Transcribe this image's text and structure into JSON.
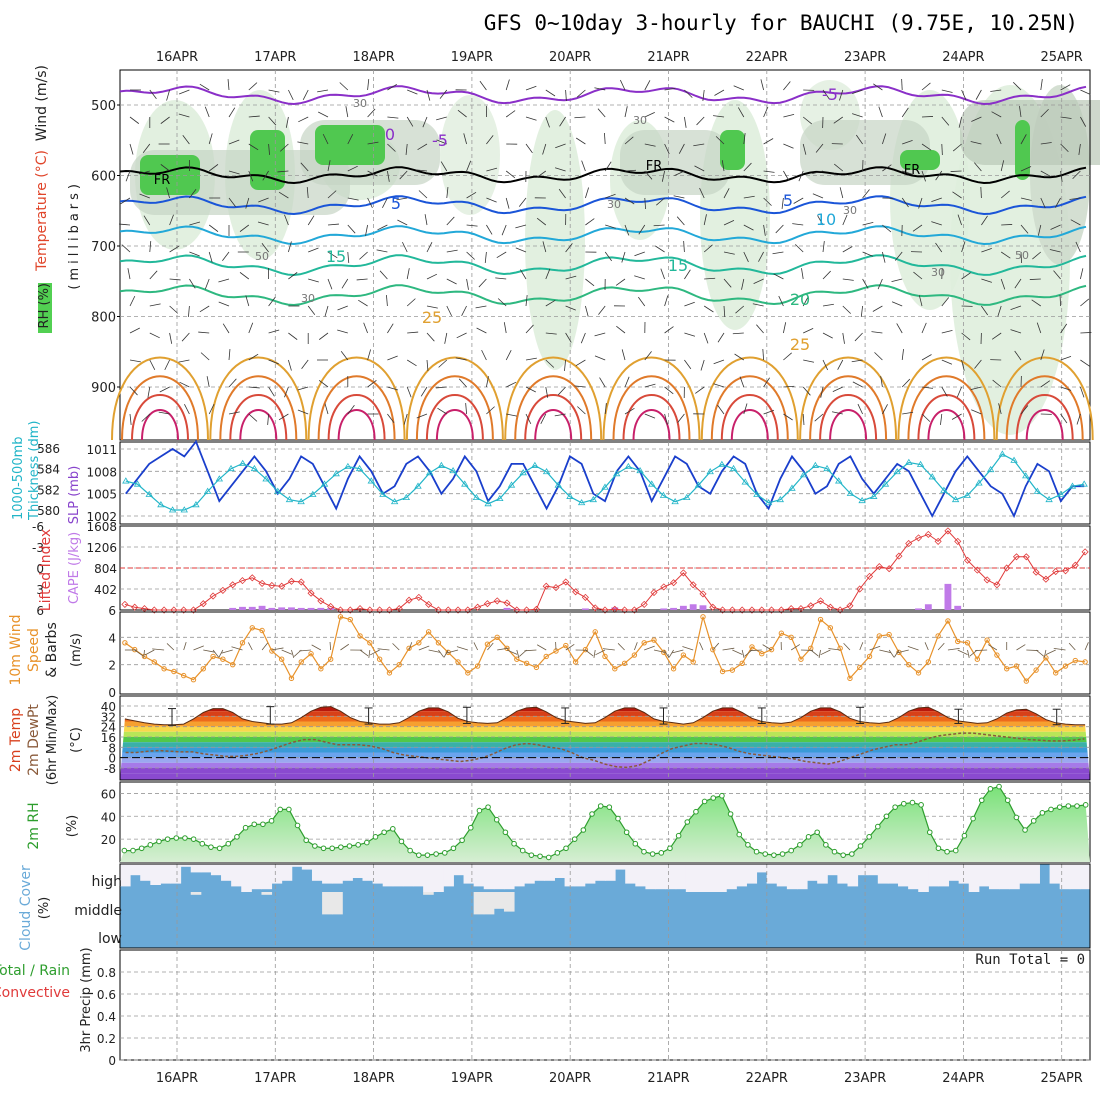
{
  "title": "GFS 0~10day 3-hourly for BAUCHI (9.75E, 10.25N)",
  "x_labels": [
    "16APR",
    "17APR",
    "18APR",
    "19APR",
    "20APR",
    "21APR",
    "22APR",
    "23APR",
    "24APR",
    "25APR"
  ],
  "colors": {
    "grid": "#999999",
    "slp": "#1a3fcc",
    "thickness": "#22b5c8",
    "lifted": "#e03a3a",
    "cape": "#c07ae8",
    "wind": "#e8922a",
    "temp_fill": "#d8401e",
    "dew": "#8a5a3a",
    "rh": "#2e9e2e",
    "cloud": "#6aaad8",
    "cloud_clear": "#f3f1f8",
    "rh_fill": "#4fc04f"
  },
  "panel_labels": {
    "upper": {
      "wind": "Wind (m/s)",
      "temp": "Temperature (°C)",
      "rh": "RH (%)",
      "mb": "(millibars)"
    },
    "slp": {
      "thick1": "1000-500mb",
      "thick2": "Thickness (dm)",
      "slp": "SLP (mb)"
    },
    "cape": {
      "li": "Lifted Index",
      "cape": "CAPE (J/kg)"
    },
    "wind10": {
      "a": "10m Wind",
      "b": "Speed",
      "c": "& Barbs",
      "unit": "(m/s)"
    },
    "temp2": {
      "a": "2m Temp",
      "b": "2m DewPt",
      "c": "(6hr Min/Max)",
      "unit": "(°C)"
    },
    "rh2": {
      "a": "2m RH",
      "unit": "(%)"
    },
    "cloud": {
      "a": "Cloud Cover",
      "unit": "(%)",
      "high": "high",
      "middle": "middle",
      "low": "low"
    },
    "precip": {
      "a": "Total / Rain",
      "b": "Convective",
      "c": "3hr Precip (mm)",
      "run_total": "Run Total = 0"
    }
  },
  "chart_data": [
    {
      "type": "line",
      "name": "upper-air cross section",
      "y_ticks": [
        500,
        600,
        700,
        800,
        900
      ],
      "ylabel": "(millibars)",
      "contour_labels_temp": [
        "-5",
        "-5",
        "0",
        "5",
        "5",
        "10",
        "15",
        "15",
        "20",
        "25",
        "25"
      ],
      "contour_labels_rh": [
        "30",
        "30",
        "30",
        "30",
        "30",
        "50",
        "50",
        "30"
      ],
      "freezing_labels": [
        "FR",
        "FR",
        "FR"
      ]
    },
    {
      "type": "line",
      "name": "SLP and thickness",
      "thickness_ticks": [
        580,
        582,
        584,
        586
      ],
      "slp_ticks": [
        1002,
        1005,
        1008,
        1011
      ],
      "slp": [
        1005,
        1007,
        1009,
        1010,
        1011,
        1010,
        1012,
        1008,
        1004,
        1006,
        1008,
        1010,
        1008,
        1005,
        1007,
        1010,
        1009,
        1006,
        1003,
        1007,
        1010,
        1008,
        1005,
        1006,
        1009,
        1010,
        1008,
        1005,
        1007,
        1010,
        1008,
        1004,
        1006,
        1009,
        1009,
        1006,
        1003,
        1006,
        1010,
        1009,
        1005,
        1004,
        1008,
        1010,
        1008,
        1004,
        1007,
        1010,
        1009,
        1006,
        1005,
        1008,
        1010,
        1009,
        1005,
        1003,
        1007,
        1010,
        1008,
        1005,
        1006,
        1009,
        1010,
        1007,
        1005,
        1007,
        1009,
        1008,
        1005,
        1002,
        1005,
        1008,
        1010,
        1008,
        1006,
        1005,
        1002,
        1006,
        1009,
        1008,
        1004,
        1006,
        1006
      ],
      "thickness": [
        582.8,
        582.5,
        581.5,
        580.5,
        580.0,
        580.0,
        580.5,
        581.8,
        583.0,
        584.0,
        584.5,
        584.0,
        583.0,
        581.8,
        581.0,
        580.8,
        581.5,
        582.5,
        583.5,
        584.2,
        584.0,
        582.8,
        581.5,
        580.8,
        581.2,
        582.3,
        583.6,
        584.3,
        583.8,
        582.5,
        581.2,
        580.6,
        581.1,
        582.4,
        583.6,
        584.3,
        583.7,
        582.4,
        581.3,
        580.7,
        581.0,
        582.2,
        583.5,
        584.2,
        583.8,
        582.5,
        581.4,
        580.8,
        581.2,
        582.4,
        583.7,
        584.4,
        584.0,
        582.7,
        581.5,
        580.7,
        581.0,
        582.1,
        583.4,
        584.3,
        584.0,
        582.8,
        581.6,
        580.9,
        581.3,
        582.5,
        583.7,
        584.6,
        584.4,
        583.2,
        581.9,
        581.0,
        581.4,
        582.6,
        583.9,
        585.4,
        584.8,
        583.3,
        581.8,
        581.0,
        581.5,
        582.3,
        582.5
      ]
    },
    {
      "type": "bar",
      "name": "CAPE and Lifted Index",
      "li_ticks": [
        6,
        3,
        0,
        -3,
        -6
      ],
      "cape_ticks": [
        402,
        804,
        1206,
        1608
      ],
      "cape": [
        0,
        0,
        0,
        0,
        0,
        0,
        0,
        0,
        0,
        0,
        0,
        40,
        60,
        60,
        80,
        40,
        50,
        50,
        40,
        40,
        40,
        40,
        0,
        0,
        0,
        0,
        0,
        0,
        0,
        0,
        0,
        0,
        0,
        0,
        0,
        0,
        0,
        0,
        0,
        40,
        20,
        0,
        0,
        0,
        0,
        0,
        0,
        30,
        0,
        0,
        50,
        0,
        0,
        0,
        0,
        30,
        40,
        80,
        110,
        90,
        0,
        0,
        0,
        0,
        0,
        0,
        0,
        0,
        0,
        0,
        0,
        0,
        0,
        0,
        0,
        0,
        0,
        0,
        0,
        0,
        0,
        30,
        110,
        0,
        500,
        80,
        0,
        0,
        0,
        0,
        0,
        0,
        0,
        0,
        0,
        0,
        0,
        0,
        0
      ],
      "lifted_index": [
        5.2,
        5.6,
        5.8,
        6.2,
        6.6,
        6.8,
        6.6,
        6.1,
        5.1,
        4.0,
        3.2,
        2.4,
        1.8,
        1.4,
        2.2,
        2.5,
        2.6,
        1.9,
        2.0,
        3.6,
        4.7,
        5.5,
        6.0,
        6.1,
        5.8,
        6.0,
        6.3,
        6.5,
        5.8,
        4.6,
        4.2,
        5.2,
        6.1,
        6.3,
        6.7,
        6.4,
        5.6,
        5.1,
        4.7,
        5.0,
        6.1,
        6.6,
        5.9,
        2.6,
        2.8,
        2.0,
        3.4,
        4.2,
        5.7,
        6.1,
        5.9,
        6.4,
        6.7,
        5.2,
        3.5,
        2.7,
        2.1,
        0.7,
        2.4,
        3.7,
        5.6,
        6.2,
        6.4,
        6.6,
        6.2,
        6.0,
        6.4,
        6.0,
        5.8,
        5.8,
        5.4,
        4.7,
        5.6,
        6.0,
        5.4,
        3.0,
        1.2,
        -0.2,
        0.1,
        -1.7,
        -3.5,
        -4.3,
        -4.8,
        -3.8,
        -5.3,
        -3.8,
        -1.1,
        0.3,
        1.7,
        2.4,
        0.0,
        -1.6,
        -1.6,
        0.6,
        1.6,
        0.5,
        0.4,
        -0.4,
        -2.3
      ]
    },
    {
      "type": "line",
      "name": "10m wind speed",
      "ylim": [
        0,
        6
      ],
      "y_ticks": [
        0,
        2,
        4,
        6
      ],
      "values": [
        3.6,
        3.1,
        2.6,
        2.2,
        1.7,
        1.5,
        1.2,
        0.9,
        1.7,
        2.6,
        2.4,
        2.0,
        3.6,
        4.7,
        4.5,
        3.0,
        2.4,
        1.0,
        2.2,
        2.8,
        1.7,
        2.4,
        5.5,
        5.3,
        4.1,
        3.6,
        2.4,
        1.4,
        2.0,
        3.2,
        3.6,
        4.4,
        3.6,
        2.9,
        2.2,
        1.4,
        1.9,
        3.5,
        4.0,
        3.2,
        2.4,
        2.1,
        1.8,
        2.6,
        3.0,
        3.4,
        2.2,
        3.1,
        4.4,
        2.6,
        1.7,
        2.1,
        2.7,
        3.6,
        3.8,
        2.9,
        1.7,
        2.7,
        2.2,
        5.5,
        3.1,
        1.5,
        1.6,
        2.1,
        3.3,
        2.8,
        3.1,
        4.3,
        4.0,
        2.4,
        3.2,
        5.3,
        4.7,
        3.2,
        1.0,
        1.8,
        2.6,
        4.1,
        4.2,
        2.9,
        2.0,
        1.4,
        2.2,
        4.1,
        5.2,
        3.7,
        3.6,
        2.4,
        3.8,
        2.7,
        1.7,
        1.9,
        0.8,
        1.6,
        2.5,
        1.4,
        1.9,
        2.3,
        2.2
      ]
    },
    {
      "type": "area",
      "name": "2m temperature and dew point",
      "y_ticks": [
        -8,
        0,
        8,
        16,
        24,
        32,
        40
      ],
      "temp": [
        30,
        28.5,
        27,
        26,
        25.5,
        25.5,
        26,
        30,
        35,
        38,
        38,
        35,
        30,
        28,
        27,
        26,
        26,
        27,
        31,
        36,
        39,
        39.5,
        36,
        31,
        28,
        27,
        26,
        26,
        27,
        31,
        36,
        38.5,
        38.5,
        35.5,
        30.5,
        28,
        27,
        26.5,
        27,
        31,
        36,
        38.5,
        39,
        35.5,
        31,
        28.5,
        27.5,
        26.5,
        27,
        31,
        36,
        38.5,
        38.5,
        35,
        30,
        28,
        27,
        26,
        27,
        31,
        36,
        38.5,
        38.5,
        35,
        30.5,
        28,
        27,
        26.5,
        27.5,
        31,
        36,
        38.5,
        38.5,
        35.5,
        30.5,
        28,
        27,
        26.5,
        27.5,
        31,
        36,
        38.5,
        39,
        35.5,
        31,
        28.5,
        27.5,
        26.5,
        27,
        30,
        34.5,
        37,
        37.5,
        34,
        29.5,
        27,
        26,
        25.5,
        25.5
      ],
      "dewpoint": [
        4,
        4,
        5,
        5.5,
        5,
        4.5,
        4.5,
        3,
        2,
        1,
        1,
        2,
        3.5,
        6,
        9,
        12,
        14,
        14,
        12,
        10,
        10,
        10,
        9,
        7,
        4,
        2,
        1,
        0,
        -1,
        -2,
        -3,
        -2,
        0,
        3,
        7,
        10,
        11,
        10,
        8,
        7,
        4,
        0,
        -2,
        -5,
        -7,
        -7.5,
        -6,
        -2,
        3,
        7,
        9,
        11,
        11,
        10,
        8,
        5,
        3,
        2,
        1,
        0,
        -1,
        -3,
        -4,
        -5,
        -3,
        0,
        3,
        6,
        8,
        10,
        10,
        12,
        15,
        17,
        18,
        19,
        19,
        18,
        17,
        16,
        15,
        14,
        13.5,
        13,
        13,
        13.5,
        14.5
      ],
      "temp_min_max": [
        [
          25,
          38
        ],
        [
          26,
          39.5
        ],
        [
          26,
          38.5
        ],
        [
          26.5,
          39
        ],
        [
          26.5,
          38.5
        ],
        [
          26,
          38.5
        ],
        [
          26.5,
          38.5
        ],
        [
          26.5,
          39
        ],
        [
          26.5,
          37.5
        ],
        [
          25.5,
          37.5
        ]
      ]
    },
    {
      "type": "area",
      "name": "2m relative humidity",
      "y_ticks": [
        20,
        40,
        60
      ],
      "values": [
        10,
        10,
        12,
        15,
        18,
        20,
        21,
        21,
        20,
        16,
        13,
        12,
        16,
        22,
        30,
        33,
        33,
        36,
        46,
        46,
        32,
        19,
        14,
        12,
        12,
        13,
        14,
        15,
        17,
        22,
        26,
        29,
        18,
        10,
        6,
        6,
        7,
        8,
        12,
        19,
        30,
        45,
        48,
        37,
        26,
        16,
        10,
        6,
        5,
        4,
        8,
        12,
        20,
        28,
        42,
        49,
        48,
        38,
        26,
        16,
        9,
        7,
        8,
        12,
        23,
        35,
        44,
        53,
        56,
        58,
        42,
        24,
        15,
        9,
        7,
        6,
        7,
        10,
        15,
        22,
        26,
        15,
        9,
        6,
        7,
        14,
        22,
        31,
        40,
        48,
        51,
        52,
        50,
        26,
        12,
        9,
        10,
        23,
        38,
        54,
        64,
        66,
        54,
        39,
        28,
        36,
        43,
        46,
        48,
        49,
        49,
        50
      ]
    },
    {
      "type": "bar",
      "name": "cloud cover",
      "levels": [
        "high",
        "middle",
        "low"
      ],
      "high": [
        20,
        60,
        40,
        25,
        30,
        30,
        90,
        70,
        70,
        60,
        40,
        20,
        0,
        10,
        10,
        30,
        40,
        90,
        80,
        40,
        30,
        30,
        40,
        50,
        40,
        30,
        20,
        20,
        20,
        20,
        0,
        0,
        20,
        60,
        30,
        20,
        10,
        10,
        10,
        20,
        30,
        40,
        40,
        50,
        20,
        20,
        30,
        40,
        40,
        80,
        30,
        20,
        10,
        10,
        10,
        10,
        0,
        0,
        0,
        0,
        10,
        20,
        30,
        70,
        30,
        20,
        10,
        10,
        40,
        30,
        60,
        30,
        20,
        60,
        60,
        30,
        30,
        20,
        10,
        0,
        20,
        20,
        40,
        30,
        0,
        20,
        10,
        10,
        10,
        30,
        30,
        100,
        30,
        10,
        10,
        10
      ],
      "middle": [
        0,
        0,
        0,
        0,
        0,
        0,
        0,
        10,
        0,
        0,
        0,
        0,
        0,
        0,
        10,
        0,
        0,
        0,
        0,
        0,
        80,
        80,
        0,
        0,
        0,
        0,
        0,
        0,
        0,
        0,
        10,
        0,
        0,
        0,
        0,
        80,
        80,
        60,
        70,
        0,
        0,
        0,
        0,
        0,
        0,
        0,
        0,
        0,
        0,
        0,
        0,
        0,
        0,
        0,
        0,
        0,
        0,
        0,
        0,
        0,
        0,
        0,
        0,
        0,
        0,
        0,
        0,
        0,
        0,
        0,
        0,
        0,
        0,
        0,
        0,
        0,
        0,
        0,
        0,
        0,
        0,
        0,
        0,
        0,
        0,
        0,
        0,
        0,
        0,
        0,
        0,
        0,
        0,
        0,
        0,
        0
      ]
    },
    {
      "type": "line",
      "name": "3hr precipitation",
      "ylim": [
        0,
        1
      ],
      "y_ticks": [
        0,
        0.2,
        0.4,
        0.6,
        0.8
      ],
      "values": []
    }
  ]
}
